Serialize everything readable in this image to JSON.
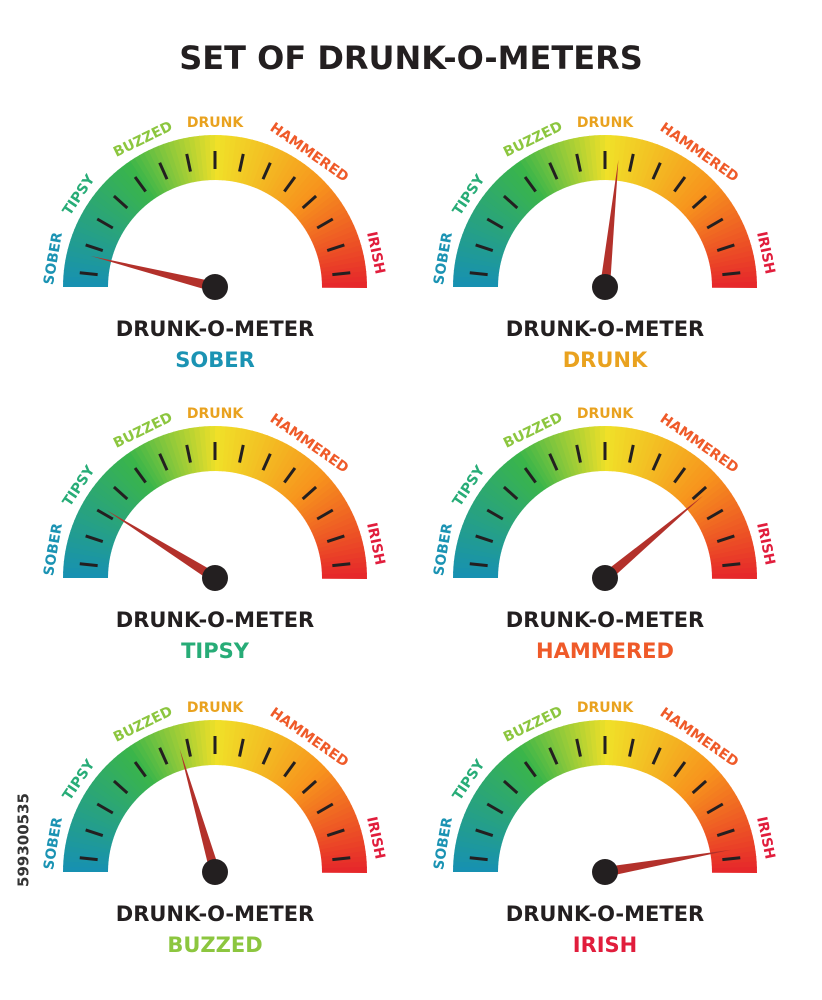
{
  "title": "SET OF DRUNK-O-METERS",
  "watermark_id": "599300535",
  "scale_labels": [
    {
      "text": "SOBER",
      "color": "#1b93b3"
    },
    {
      "text": "TIPSY",
      "color": "#27ac77"
    },
    {
      "text": "BUZZED",
      "color": "#8cc63f"
    },
    {
      "text": "DRUNK",
      "color": "#e9a21f"
    },
    {
      "text": "HAMMERED",
      "color": "#ef5a29"
    },
    {
      "text": "IRISH",
      "color": "#e11d3c"
    }
  ],
  "gauges": [
    {
      "caption": "DRUNK-O-METER",
      "state": "SOBER"
    },
    {
      "caption": "DRUNK-O-METER",
      "state": "DRUNK"
    },
    {
      "caption": "DRUNK-O-METER",
      "state": "TIPSY"
    },
    {
      "caption": "DRUNK-O-METER",
      "state": "HAMMERED"
    },
    {
      "caption": "DRUNK-O-METER",
      "state": "BUZZED"
    },
    {
      "caption": "DRUNK-O-METER",
      "state": "IRISH"
    }
  ]
}
